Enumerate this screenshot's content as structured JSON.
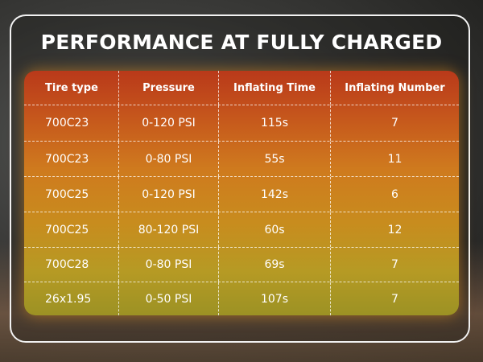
{
  "title": "PERFORMANCE AT FULLY CHARGED",
  "table": {
    "header": [
      "Tire type",
      "Pressure",
      "Inflating Time",
      "Inflating Number"
    ],
    "rows": [
      [
        "700C23",
        "0-120 PSI",
        "115s",
        "7"
      ],
      [
        "700C23",
        "0-80 PSI",
        "55s",
        "11"
      ],
      [
        "700C25",
        "0-120 PSI",
        "142s",
        "6"
      ],
      [
        "700C25",
        "80-120 PSI",
        "60s",
        "12"
      ],
      [
        "700C28",
        "0-80 PSI",
        "69s",
        "7"
      ],
      [
        "26x1.95",
        "0-50 PSI",
        "107s",
        "7"
      ]
    ]
  }
}
